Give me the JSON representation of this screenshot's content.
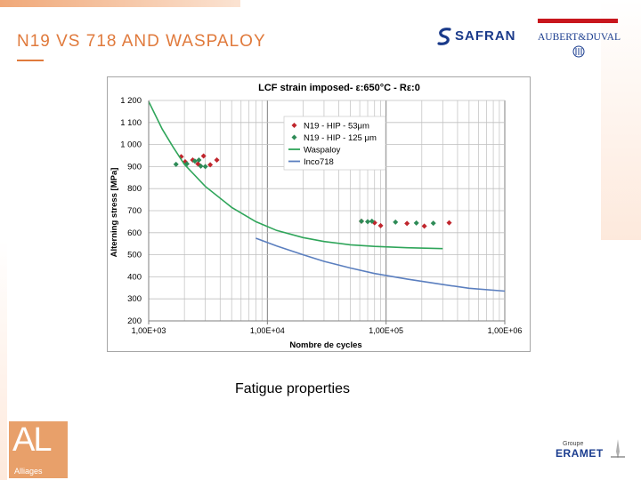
{
  "slide": {
    "title": "N19 VS 718 AND WASPALOY",
    "caption": "Fatigue properties"
  },
  "logos": {
    "safran": "SAFRAN",
    "aubert_duval": "AUBERT&DUVAL",
    "alliages_letters": "AL",
    "alliages_caption": "Alliages",
    "eramet_groupe": "Groupe",
    "eramet": "ERAMET"
  },
  "colors": {
    "accent": "#e07a3c",
    "n19_53": "#c0262d",
    "n19_125": "#2e8b57",
    "waspaloy": "#2fa55a",
    "inco718": "#5b7fbf"
  },
  "chart_data": {
    "type": "scatter",
    "title": "LCF strain imposed- ε:650°C - Rε:0",
    "xlabel": "Nombre de cycles",
    "ylabel": "Alterning stress [MPa]",
    "x_scale": "log",
    "xlim": [
      1000,
      1000000
    ],
    "ylim": [
      200,
      1200
    ],
    "x_ticks": [
      1000,
      10000,
      100000,
      1000000
    ],
    "x_tick_labels": [
      "1,00E+03",
      "1,00E+04",
      "1,00E+05",
      "1,00E+06"
    ],
    "y_ticks": [
      200,
      300,
      400,
      500,
      600,
      700,
      800,
      900,
      1000,
      1100,
      1200
    ],
    "y_tick_labels": [
      "200",
      "300",
      "400",
      "500",
      "600",
      "700",
      "800",
      "900",
      "1 000",
      "1 100",
      "1 200"
    ],
    "grid": true,
    "legend_position": "top-right",
    "series": [
      {
        "name": "N19 - HIP - 53μm",
        "kind": "points",
        "marker": "diamond",
        "color": "#c0262d",
        "points": [
          [
            1880,
            945
          ],
          [
            2030,
            922
          ],
          [
            2350,
            930
          ],
          [
            2600,
            912
          ],
          [
            2900,
            948
          ],
          [
            3300,
            908
          ],
          [
            3750,
            930
          ],
          [
            62000,
            652
          ],
          [
            80000,
            645
          ],
          [
            90000,
            632
          ],
          [
            150000,
            642
          ],
          [
            210000,
            630
          ],
          [
            340000,
            645
          ]
        ]
      },
      {
        "name": "N19 - HIP - 125 μm",
        "kind": "points",
        "marker": "diamond",
        "color": "#2e8b57",
        "points": [
          [
            1700,
            910
          ],
          [
            2100,
            912
          ],
          [
            2450,
            925
          ],
          [
            2650,
            930
          ],
          [
            2750,
            902
          ],
          [
            3000,
            900
          ],
          [
            62000,
            652
          ],
          [
            70000,
            650
          ],
          [
            76000,
            652
          ],
          [
            120000,
            648
          ],
          [
            180000,
            644
          ],
          [
            250000,
            643
          ]
        ]
      },
      {
        "name": "Waspaloy",
        "kind": "line",
        "color": "#2fa55a",
        "points": [
          [
            1000,
            1195
          ],
          [
            1300,
            1070
          ],
          [
            1600,
            990
          ],
          [
            2000,
            910
          ],
          [
            3000,
            810
          ],
          [
            5000,
            715
          ],
          [
            8000,
            650
          ],
          [
            12000,
            610
          ],
          [
            20000,
            578
          ],
          [
            30000,
            560
          ],
          [
            50000,
            545
          ],
          [
            80000,
            538
          ],
          [
            150000,
            532
          ],
          [
            300000,
            528
          ]
        ]
      },
      {
        "name": "Inco718",
        "kind": "line",
        "color": "#5b7fbf",
        "points": [
          [
            8000,
            575
          ],
          [
            12000,
            540
          ],
          [
            20000,
            500
          ],
          [
            30000,
            470
          ],
          [
            50000,
            440
          ],
          [
            80000,
            415
          ],
          [
            150000,
            390
          ],
          [
            300000,
            365
          ],
          [
            500000,
            348
          ],
          [
            1000000,
            335
          ]
        ]
      }
    ]
  }
}
